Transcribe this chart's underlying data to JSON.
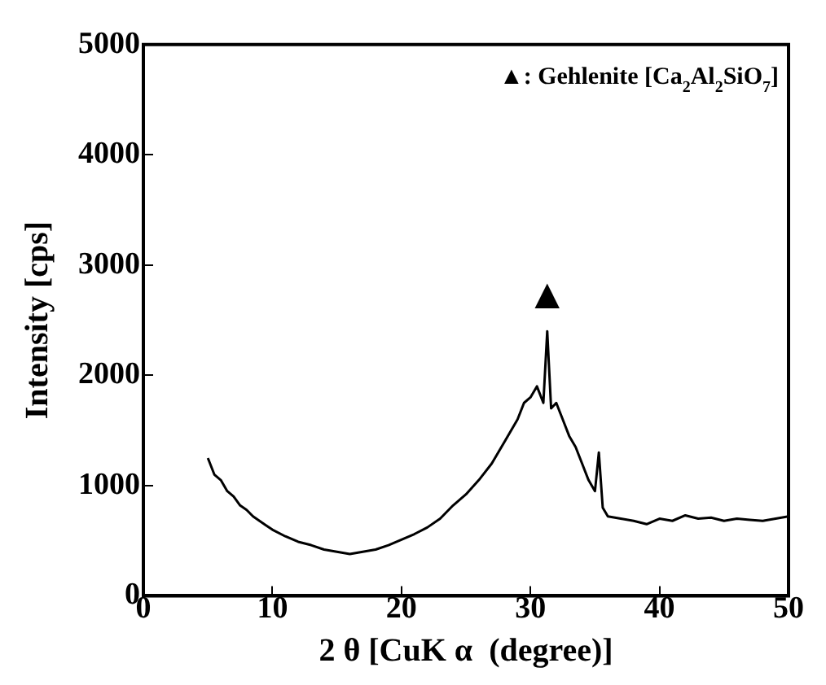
{
  "chart_data": {
    "type": "line",
    "xlabel": "2 θ [CuK α  (degree)]",
    "ylabel": "Intensity [cps]",
    "xlim": [
      0,
      50
    ],
    "ylim": [
      0,
      5000
    ],
    "xticks": [
      0,
      10,
      20,
      30,
      40,
      50
    ],
    "yticks": [
      0,
      1000,
      2000,
      3000,
      4000,
      5000
    ],
    "grid": false,
    "legend": false,
    "marker": "none",
    "line_style": "solid",
    "series": [
      {
        "color": "#000000",
        "x": [
          5,
          5.5,
          6,
          6.5,
          7,
          7.5,
          8,
          8.5,
          9,
          9.5,
          10,
          11,
          12,
          13,
          14,
          15,
          16,
          17,
          18,
          19,
          20,
          21,
          22,
          23,
          24,
          25,
          26,
          27,
          28,
          29,
          29.5,
          30,
          30.5,
          31,
          31.3,
          31.6,
          32,
          32.5,
          33,
          33.5,
          34,
          34.5,
          35,
          35.3,
          35.6,
          36,
          37,
          38,
          39,
          40,
          41,
          42,
          43,
          44,
          45,
          46,
          47,
          48,
          49,
          50
        ],
        "values": [
          1250,
          1100,
          1050,
          950,
          900,
          820,
          780,
          720,
          680,
          640,
          600,
          540,
          490,
          460,
          420,
          400,
          380,
          400,
          420,
          460,
          510,
          560,
          620,
          700,
          820,
          920,
          1050,
          1200,
          1400,
          1600,
          1750,
          1800,
          1900,
          1750,
          2400,
          1700,
          1750,
          1600,
          1450,
          1350,
          1200,
          1050,
          950,
          1300,
          800,
          720,
          700,
          680,
          650,
          700,
          680,
          730,
          700,
          710,
          680,
          700,
          690,
          680,
          700,
          720
        ]
      }
    ],
    "annotations": [
      "▲",
      "▲: Gehlenite [Ca$_{2}$Al$_{2}$SiO$_{7}$]"
    ]
  }
}
